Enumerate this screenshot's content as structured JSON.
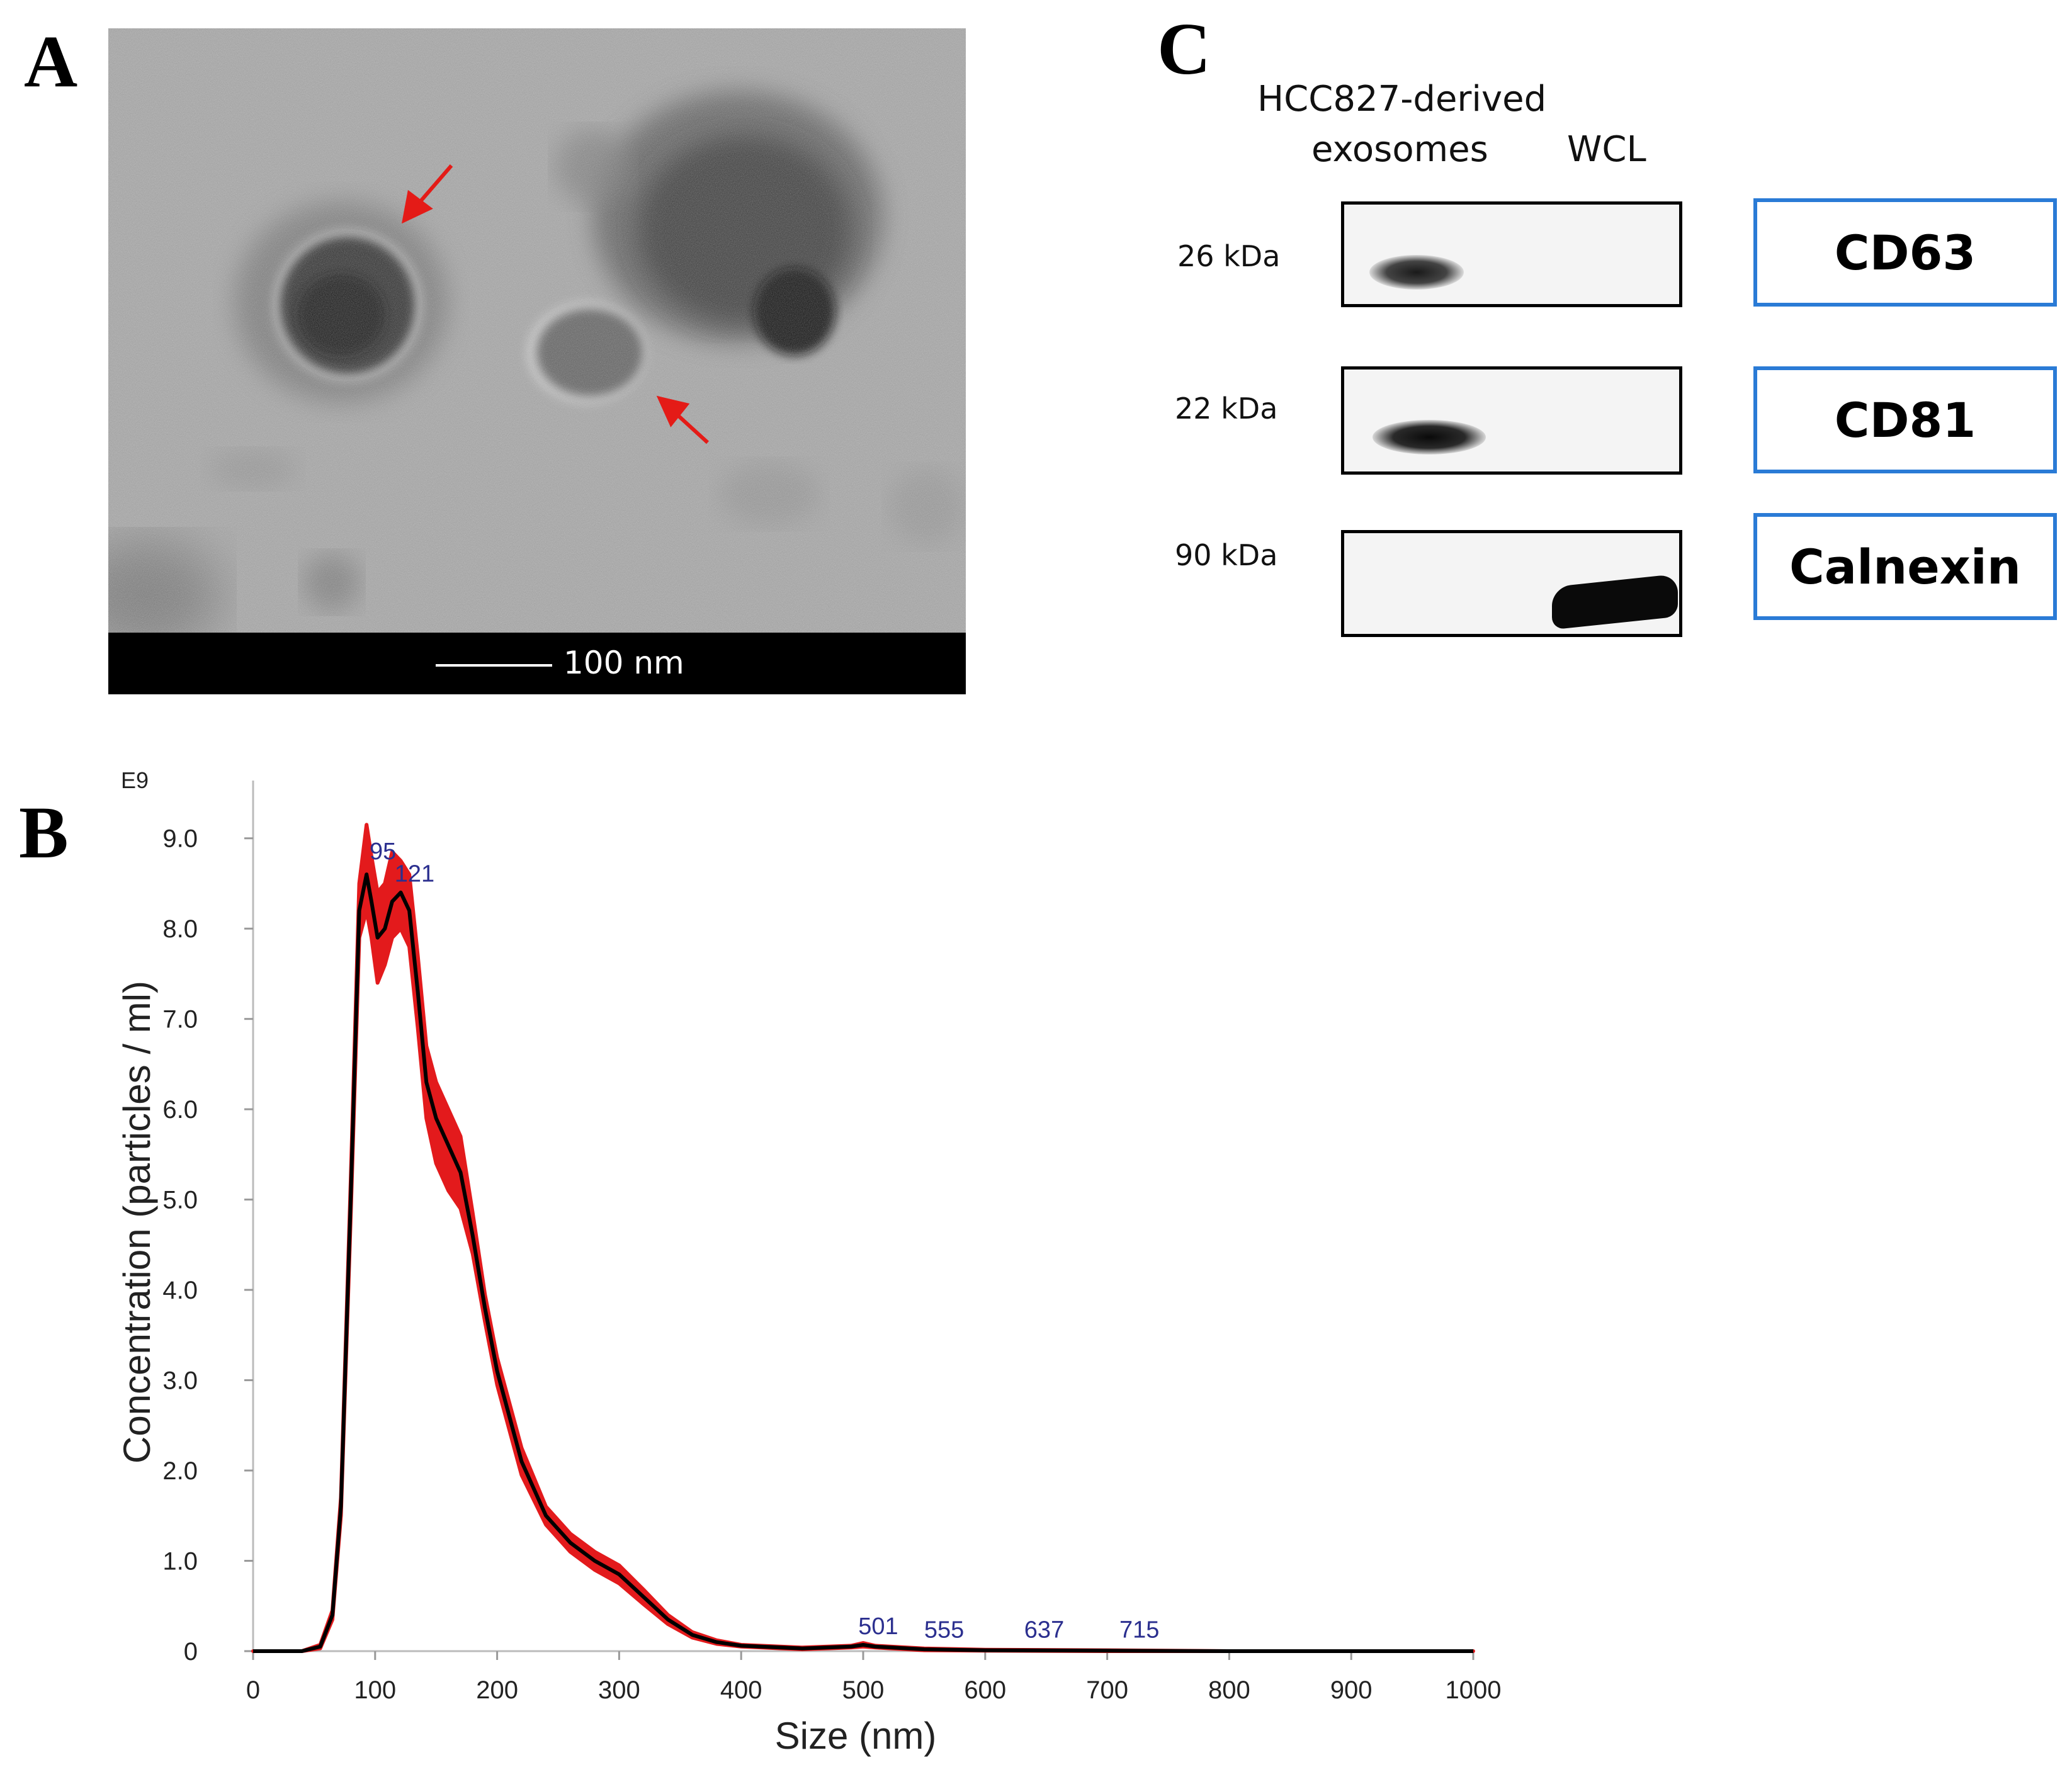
{
  "figure": {
    "panel_a": {
      "letter": "A",
      "scale_bar_label": "100 nm"
    },
    "panel_b": {
      "letter": "B"
    },
    "panel_c": {
      "letter": "C",
      "column_headers": [
        "HCC827-derived",
        "exosomes",
        "WCL"
      ],
      "rows": [
        {
          "kda": "26 kDa",
          "marker": "CD63",
          "exosome_band": true,
          "wcl_band": false
        },
        {
          "kda": "22 kDa",
          "marker": "CD81",
          "exosome_band": true,
          "wcl_band": false
        },
        {
          "kda": "90 kDa",
          "marker": "Calnexin",
          "exosome_band": false,
          "wcl_band": true
        }
      ],
      "marker_box_color": "#2a7bd6"
    }
  },
  "chart_data": {
    "type": "line",
    "xlabel": "Size (nm)",
    "ylabel": "Concentration (particles / ml)",
    "y_multiplier_label": "E9",
    "xlim": [
      0,
      1000
    ],
    "ylim": [
      0,
      9.5
    ],
    "x_ticks": [
      0,
      100,
      200,
      300,
      400,
      500,
      600,
      700,
      800,
      900,
      1000
    ],
    "x_tick_labels": [
      "0",
      "100",
      "200",
      "300",
      "400",
      "500",
      "600",
      "700",
      "800",
      "900",
      "1000"
    ],
    "y_ticks": [
      0,
      1,
      2,
      3,
      4,
      5,
      6,
      7,
      8,
      9
    ],
    "y_tick_labels": [
      "0",
      "1.0",
      "2.0",
      "3.0",
      "4.0",
      "5.0",
      "6.0",
      "7.0",
      "8.0",
      "9.0"
    ],
    "series": [
      {
        "color": "#000000",
        "x": [
          0,
          40,
          55,
          65,
          72,
          80,
          87,
          93,
          97,
          102,
          108,
          114,
          121,
          128,
          135,
          142,
          150,
          160,
          170,
          180,
          190,
          200,
          220,
          240,
          260,
          280,
          300,
          320,
          340,
          360,
          380,
          400,
          450,
          490,
          500,
          510,
          550,
          600,
          700,
          800,
          900,
          1000
        ],
        "y": [
          0,
          0,
          0.05,
          0.4,
          1.6,
          5.0,
          8.2,
          8.6,
          8.3,
          7.9,
          8.0,
          8.3,
          8.4,
          8.2,
          7.3,
          6.3,
          5.9,
          5.6,
          5.3,
          4.6,
          3.8,
          3.1,
          2.1,
          1.5,
          1.2,
          1.0,
          0.85,
          0.6,
          0.35,
          0.18,
          0.1,
          0.06,
          0.03,
          0.05,
          0.07,
          0.05,
          0.02,
          0.01,
          0.005,
          0,
          0,
          0
        ]
      },
      {
        "type": "band",
        "color": "#e31a1c",
        "x": [
          0,
          40,
          55,
          65,
          72,
          80,
          87,
          93,
          97,
          102,
          108,
          114,
          121,
          128,
          135,
          142,
          150,
          160,
          170,
          180,
          190,
          200,
          220,
          240,
          260,
          280,
          300,
          320,
          340,
          360,
          380,
          400,
          450,
          490,
          500,
          510,
          550,
          600,
          700,
          800,
          900,
          1000
        ],
        "y_low": [
          0,
          0,
          0.03,
          0.35,
          1.5,
          4.8,
          7.9,
          8.2,
          7.9,
          7.4,
          7.6,
          7.9,
          8.0,
          7.8,
          6.9,
          5.9,
          5.4,
          5.1,
          4.9,
          4.4,
          3.65,
          2.95,
          1.95,
          1.4,
          1.1,
          0.9,
          0.75,
          0.52,
          0.3,
          0.15,
          0.08,
          0.05,
          0.02,
          0.04,
          0.05,
          0.04,
          0.01,
          0.005,
          0,
          0,
          0,
          0
        ],
        "y_high": [
          0,
          0,
          0.07,
          0.45,
          1.7,
          5.2,
          8.5,
          9.15,
          8.8,
          8.4,
          8.5,
          8.85,
          8.75,
          8.6,
          7.7,
          6.7,
          6.3,
          6.0,
          5.7,
          4.85,
          3.95,
          3.25,
          2.25,
          1.6,
          1.3,
          1.1,
          0.95,
          0.68,
          0.4,
          0.21,
          0.12,
          0.07,
          0.04,
          0.06,
          0.09,
          0.06,
          0.03,
          0.015,
          0.01,
          0,
          0,
          0
        ]
      }
    ],
    "peak_annotations": [
      {
        "x": 95,
        "y": 8.7,
        "label": "95"
      },
      {
        "x": 121,
        "y": 8.45,
        "label": "121"
      },
      {
        "x": 501,
        "y": 0.12,
        "label": "501"
      },
      {
        "x": 555,
        "y": 0.08,
        "label": "555"
      },
      {
        "x": 637,
        "y": 0.08,
        "label": "637"
      },
      {
        "x": 715,
        "y": 0.08,
        "label": "715"
      }
    ],
    "annotation_color": "#2b2f8f",
    "grid": false,
    "legend": "none"
  }
}
